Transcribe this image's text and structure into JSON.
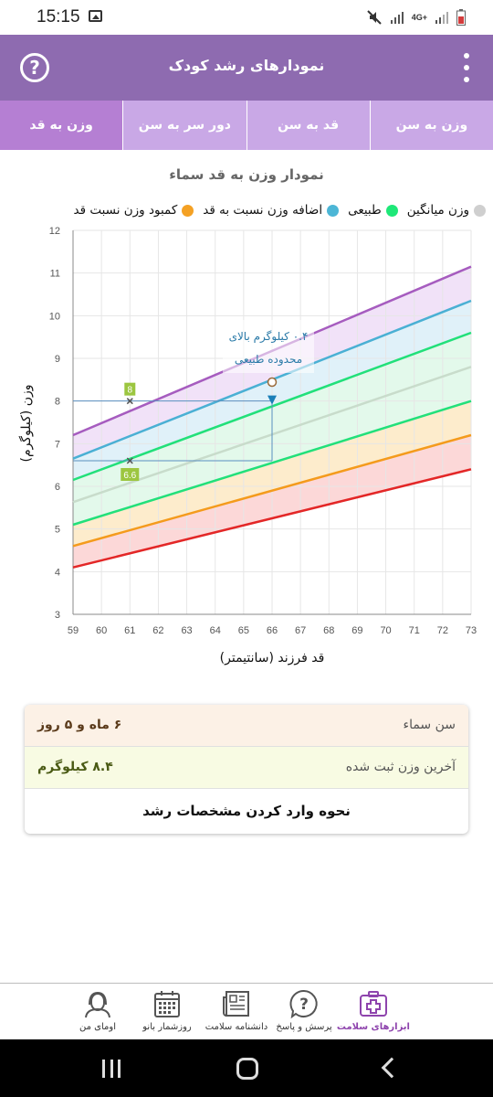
{
  "status_bar": {
    "time": "15:15",
    "network": "4G+"
  },
  "header": {
    "title": "نمودارهای رشد کودک"
  },
  "tabs": [
    {
      "label": "وزن به سن",
      "active": false
    },
    {
      "label": "قد به سن",
      "active": false
    },
    {
      "label": "دور سر به سن",
      "active": false
    },
    {
      "label": "وزن به قد",
      "active": true
    }
  ],
  "chart_title": "نمودار وزن به قد سماء",
  "legend": [
    {
      "label": "کمبود وزن نسبت قد",
      "color": "#f4a124"
    },
    {
      "label": "اضافه وزن نسبت به قد",
      "color": "#4cb6d6"
    },
    {
      "label": "طبیعی",
      "color": "#1ee878"
    },
    {
      "label": "وزن میانگین",
      "color": "#cfcfcf"
    }
  ],
  "chart_data": {
    "type": "line",
    "xlabel": "قد فرزند (سانتیمتر)",
    "ylabel": "وزن (کیلوگرم)",
    "xlim": [
      59,
      73
    ],
    "ylim": [
      3,
      12
    ],
    "x_ticks": [
      "59",
      "60",
      "61",
      "62",
      "63",
      "64",
      "65",
      "66",
      "67",
      "68",
      "69",
      "70",
      "71",
      "72",
      "73"
    ],
    "y_ticks": [
      "3",
      "4",
      "5",
      "6",
      "7",
      "8",
      "9",
      "10",
      "11",
      "12"
    ],
    "grid": true,
    "x": [
      59,
      73
    ],
    "series": [
      {
        "key": "red",
        "color": "#e32727",
        "values": [
          4.1,
          6.4
        ]
      },
      {
        "key": "orange",
        "color": "#f49b1c",
        "values": [
          4.6,
          7.2
        ]
      },
      {
        "key": "green-low",
        "color": "#22e07a",
        "values": [
          5.1,
          8.0
        ]
      },
      {
        "key": "mean",
        "color": "#c8dccb",
        "values": [
          5.63,
          8.8
        ]
      },
      {
        "key": "green-high",
        "color": "#22e07a",
        "values": [
          6.15,
          9.6
        ]
      },
      {
        "key": "blue",
        "color": "#4ab0d4",
        "values": [
          6.65,
          10.35
        ]
      },
      {
        "key": "purple",
        "color": "#a65cbf",
        "values": [
          7.2,
          11.15
        ]
      }
    ],
    "band_fills": [
      "#fcd8d8",
      "#fdeccc",
      "#e3f9eb",
      "#e3f9eb",
      "#e0f1f9",
      "#f1e2f8"
    ],
    "markers": [
      {
        "x": 61,
        "y": 8.0,
        "label": "8"
      },
      {
        "x": 61,
        "y": 6.6,
        "label": "6.6"
      },
      {
        "x": 66,
        "y": 8.4
      }
    ],
    "annotation": {
      "x": 66,
      "y": 8.4,
      "text_line1": "۰.۴ کیلوگرم بالای",
      "text_line2": "محدوده طبیعی"
    }
  },
  "info": {
    "age_label": "سن سماء",
    "age_value": "۶ ماه و ۵ روز",
    "weight_label": "آخرین وزن ثبت شده",
    "weight_value": "۸.۴ کیلوگرم",
    "link_text": "نحوه وارد کردن مشخصات رشد"
  },
  "bottom_nav": [
    {
      "label": "ابزارهای سلامت",
      "icon": "medical-kit-icon",
      "active": true
    },
    {
      "label": "پرسش و پاسخ",
      "icon": "question-bubble-icon",
      "active": false
    },
    {
      "label": "دانشنامه سلامت",
      "icon": "newspaper-icon",
      "active": false
    },
    {
      "label": "روزشمار بانو",
      "icon": "calendar-icon",
      "active": false
    },
    {
      "label": "اومای من",
      "icon": "user-avatar-icon",
      "active": false
    }
  ]
}
